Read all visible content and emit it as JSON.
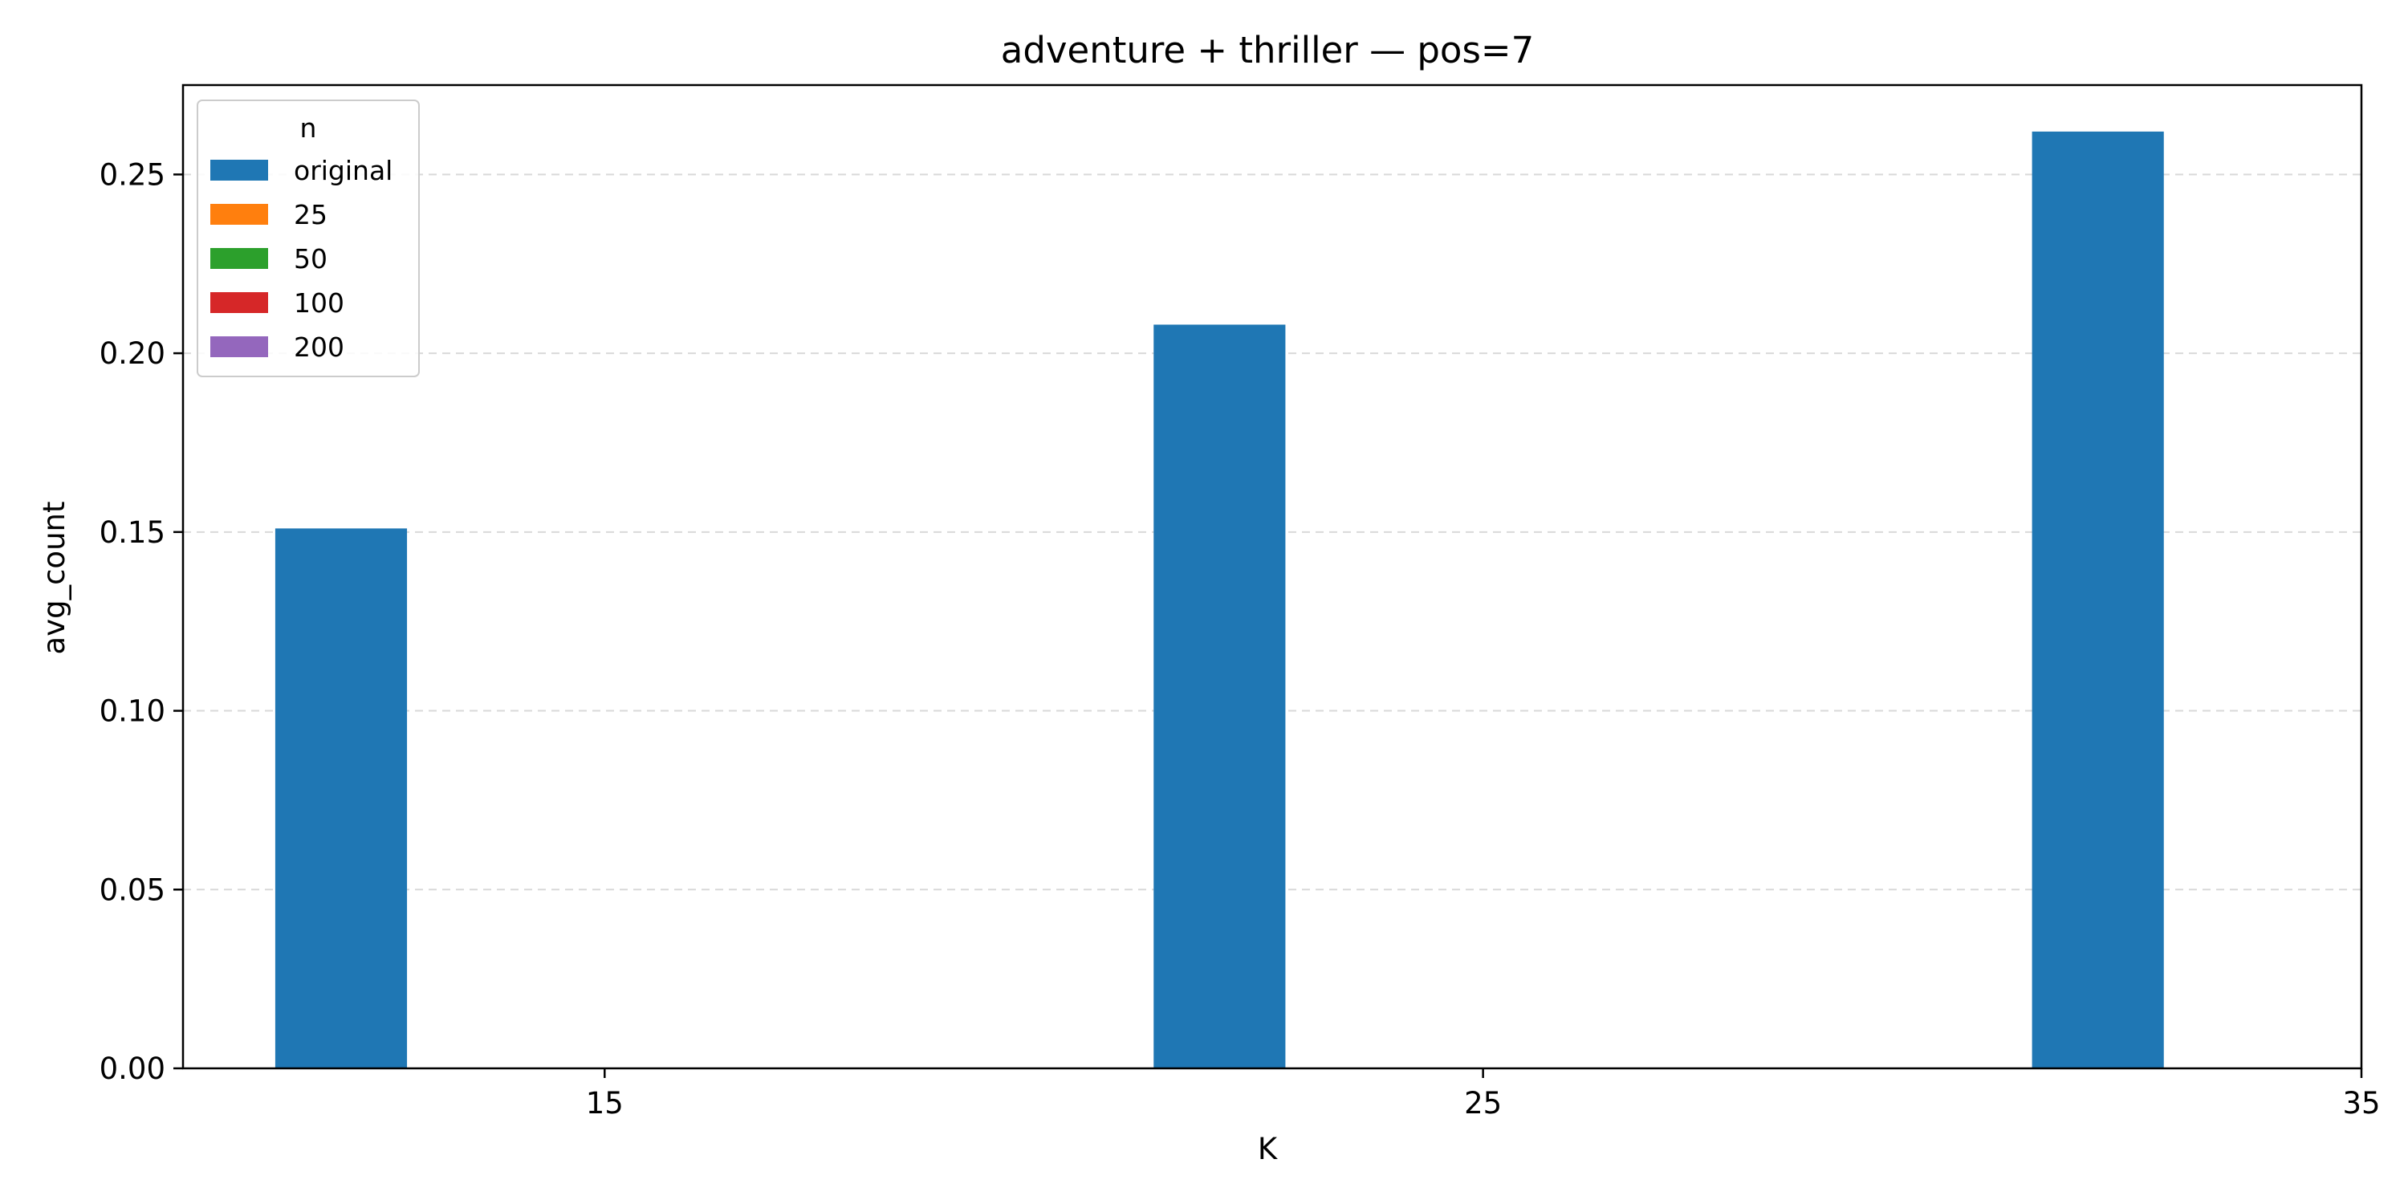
{
  "chart_data": {
    "type": "bar",
    "title": "adventure + thriller — pos=7",
    "xlabel": "K",
    "ylabel": "avg_count",
    "x_ticks": [
      "15",
      "25",
      "35"
    ],
    "x_tick_values": [
      15,
      25,
      35
    ],
    "xlim": [
      10.2,
      35
    ],
    "ylim": [
      0,
      0.275
    ],
    "y_ticks": [
      "0.00",
      "0.05",
      "0.10",
      "0.15",
      "0.20",
      "0.25"
    ],
    "y_tick_values": [
      0,
      0.05,
      0.1,
      0.15,
      0.2,
      0.25
    ],
    "grid": "y-dashed",
    "legend": {
      "title": "n",
      "placement": "upper-left",
      "entries": [
        "original",
        "25",
        "50",
        "100",
        "200"
      ]
    },
    "bar_width": 1.5,
    "series": [
      {
        "name": "original",
        "color": "#1f77b4",
        "x": [
          12,
          22,
          32
        ],
        "values": [
          0.151,
          0.208,
          0.262
        ]
      },
      {
        "name": "25",
        "color": "#ff7f0e",
        "x": [],
        "values": []
      },
      {
        "name": "50",
        "color": "#2ca02c",
        "x": [],
        "values": []
      },
      {
        "name": "100",
        "color": "#d62728",
        "x": [],
        "values": []
      },
      {
        "name": "200",
        "color": "#9467bd",
        "x": [],
        "values": []
      }
    ]
  }
}
